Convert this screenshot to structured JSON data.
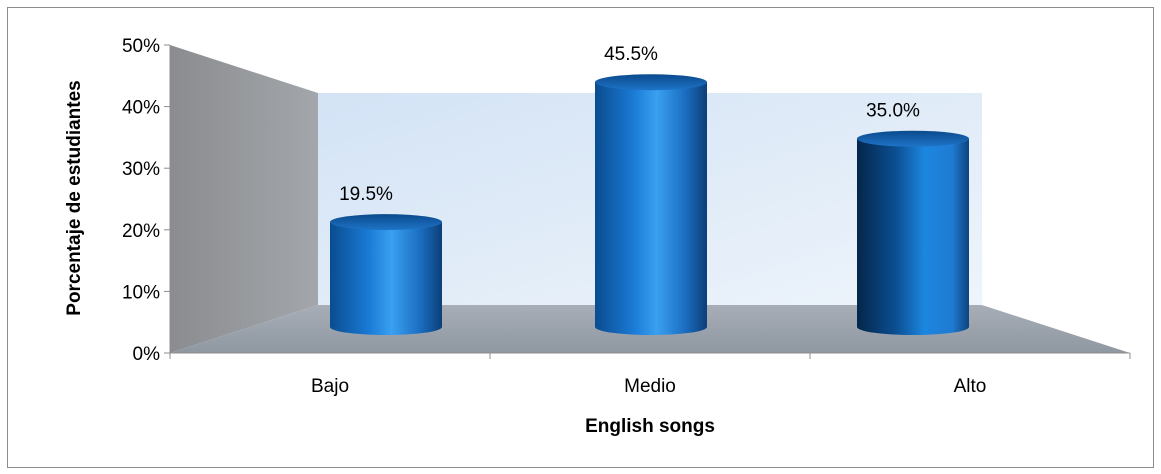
{
  "chart_data": {
    "type": "bar",
    "style": "3d-cylinder",
    "categories": [
      "Bajo",
      "Medio",
      "Alto"
    ],
    "values": [
      19.5,
      45.5,
      35.0
    ],
    "data_labels": [
      "19.5%",
      "45.5%",
      "35.0%"
    ],
    "xlabel": "English songs",
    "ylabel": "Porcentaje de estudiantes",
    "ylim": [
      0,
      50
    ],
    "yticks": [
      "0%",
      "10%",
      "20%",
      "30%",
      "40%",
      "50%"
    ],
    "grid": false,
    "legend": "none",
    "colors": {
      "bar": "#1f6fc5",
      "back_wall": "#dce9f7",
      "side_wall": "#8e9196",
      "floor": "#9da4ad"
    }
  }
}
